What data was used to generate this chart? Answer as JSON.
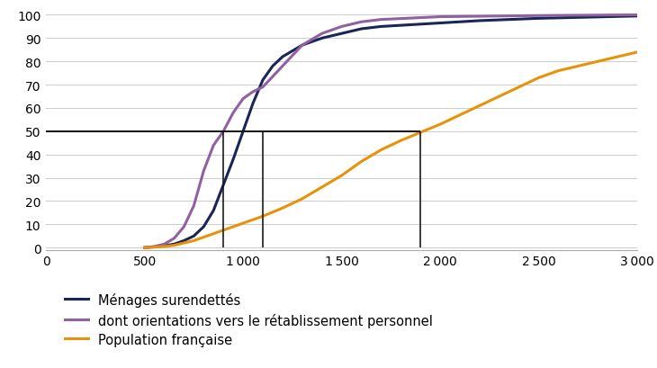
{
  "title": "",
  "xlim": [
    0,
    3000
  ],
  "ylim": [
    -1,
    102
  ],
  "xticks": [
    0,
    500,
    1000,
    1500,
    2000,
    2500,
    3000
  ],
  "yticks": [
    0,
    10,
    20,
    30,
    40,
    50,
    60,
    70,
    80,
    90,
    100
  ],
  "series": [
    {
      "label": "Ménages surendettés",
      "color": "#1a2558",
      "linewidth": 2.2,
      "x": [
        500,
        550,
        600,
        650,
        700,
        750,
        800,
        850,
        900,
        950,
        1000,
        1050,
        1100,
        1150,
        1200,
        1300,
        1400,
        1500,
        1600,
        1700,
        1800,
        1900,
        2000,
        2200,
        2500,
        3000
      ],
      "y": [
        0,
        0.3,
        0.8,
        1.5,
        3,
        5,
        9,
        16,
        27,
        38,
        50,
        62,
        72,
        78,
        82,
        87,
        90,
        92,
        94,
        95,
        95.5,
        96,
        96.5,
        97.5,
        98.5,
        99.5
      ]
    },
    {
      "label": "dont orientations vers le rétablissement personnel",
      "color": "#9060A0",
      "linewidth": 2.2,
      "x": [
        500,
        550,
        600,
        650,
        700,
        750,
        800,
        850,
        900,
        950,
        1000,
        1050,
        1100,
        1200,
        1300,
        1400,
        1500,
        1600,
        1700,
        2000,
        2500,
        3000
      ],
      "y": [
        0,
        0.5,
        1.5,
        4,
        9,
        18,
        33,
        44,
        50,
        58,
        64,
        67,
        69,
        78,
        87,
        92,
        95,
        97,
        98,
        99.2,
        99.7,
        100
      ]
    },
    {
      "label": "Population française",
      "color": "#E8920A",
      "linewidth": 2.2,
      "x": [
        500,
        550,
        600,
        650,
        700,
        750,
        800,
        850,
        900,
        950,
        1000,
        1050,
        1100,
        1200,
        1300,
        1400,
        1500,
        1600,
        1700,
        1800,
        1900,
        2000,
        2100,
        2200,
        2300,
        2400,
        2500,
        2600,
        2700,
        2800,
        2900,
        3000
      ],
      "y": [
        0,
        0.2,
        0.5,
        1,
        2,
        3,
        4.5,
        6,
        7.5,
        9,
        10.5,
        12,
        13.5,
        17,
        21,
        26,
        31,
        37,
        42,
        46,
        49.5,
        53,
        57,
        61,
        65,
        69,
        73,
        76,
        78,
        80,
        82,
        84
      ]
    }
  ],
  "hline": {
    "y": 50,
    "xmin": 0,
    "xmax": 1900,
    "color": "#1a1a1a",
    "linewidth": 1.5
  },
  "vlines": [
    {
      "x": 900,
      "ymax": 50,
      "color": "#1a1a1a",
      "linewidth": 1.2
    },
    {
      "x": 1100,
      "ymax": 50,
      "color": "#1a1a1a",
      "linewidth": 1.2
    },
    {
      "x": 1900,
      "ymax": 50,
      "color": "#1a1a1a",
      "linewidth": 1.2
    }
  ],
  "grid_color": "#cccccc",
  "grid_linewidth": 0.7,
  "background_color": "#ffffff",
  "legend_fontsize": 10.5
}
